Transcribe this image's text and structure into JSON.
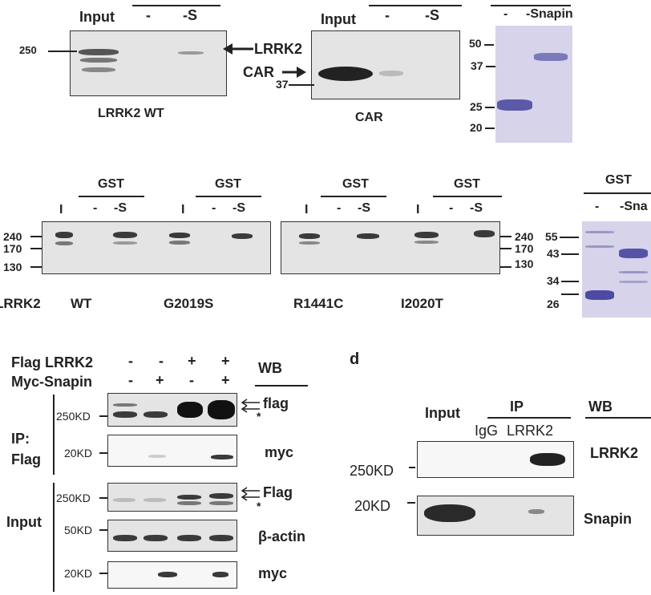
{
  "panel_a": {
    "lrrk2": {
      "col_input": "Input",
      "col_minus": "-",
      "col_s": "-S",
      "mw": "250",
      "target": "LRRK2",
      "caption": "LRRK2 WT"
    },
    "car": {
      "col_input": "Input",
      "col_minus": "-",
      "col_s": "-S",
      "target": "CAR",
      "mw": "37",
      "caption": "CAR"
    },
    "gel": {
      "col_minus": "-",
      "col_s": "-Snapin",
      "mw": [
        "50",
        "37",
        "25",
        "20"
      ]
    }
  },
  "panel_b": {
    "group_label": "GST",
    "lane_i": "I",
    "lane_minus": "-",
    "lane_s": "-S",
    "mw_left": [
      "240",
      "170",
      "130"
    ],
    "mw_mid": [
      "240",
      "170",
      "130"
    ],
    "row_label": "LRRK2",
    "variants": [
      "WT",
      "G2019S",
      "R1441C",
      "I2020T"
    ],
    "gel": {
      "group_label": "GST",
      "col_minus": "-",
      "col_s": "-Sna",
      "mw": [
        "55",
        "43",
        "34",
        "26"
      ]
    }
  },
  "panel_c": {
    "row1_label": "Flag LRRK2",
    "row2_label": "Myc-Snapin",
    "row1_signs": [
      "-",
      "-",
      "+",
      "+"
    ],
    "row2_signs": [
      "-",
      "+",
      "-",
      "+"
    ],
    "wb": "WB",
    "ip_label": "IP:",
    "ip_label2": "Flag",
    "input_label": "Input",
    "blots": [
      {
        "mw": "250KD",
        "label": "flag",
        "star": "*"
      },
      {
        "mw": "20KD",
        "label": "myc"
      },
      {
        "mw": "250KD",
        "label": "Flag",
        "star": "*"
      },
      {
        "mw": "50KD",
        "label": "β-actin"
      },
      {
        "mw": "20KD",
        "label": "myc"
      }
    ]
  },
  "panel_d": {
    "letter": "d",
    "input": "Input",
    "ip": "IP",
    "wb": "WB",
    "igg": "IgG",
    "lrrk2_col": "LRRK2",
    "blots": [
      {
        "mw": "250KD",
        "label": "LRRK2"
      },
      {
        "mw": "20KD",
        "label": "Snapin"
      }
    ]
  }
}
